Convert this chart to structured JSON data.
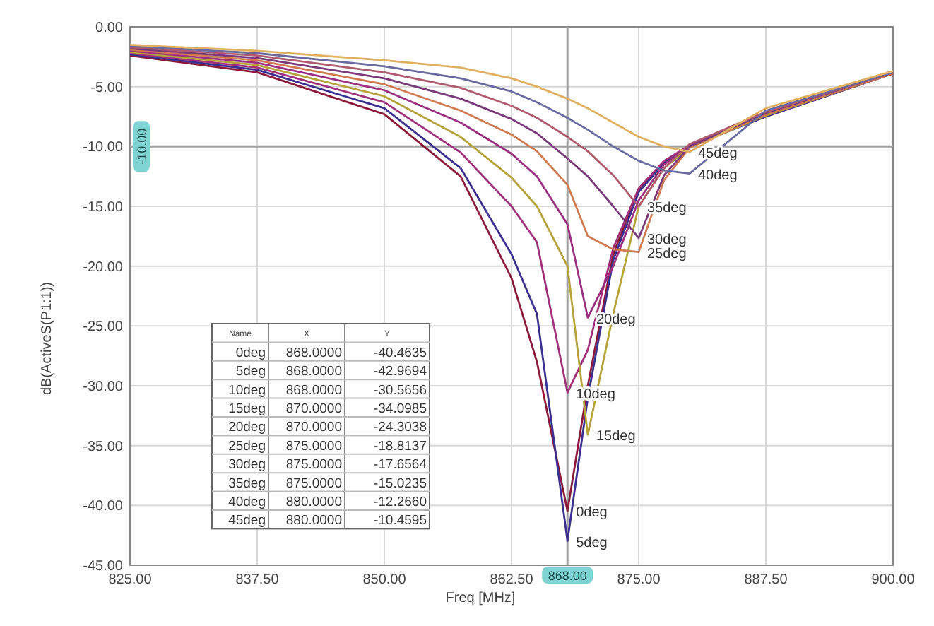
{
  "chart_data": {
    "type": "line",
    "xlabel": "Freq [MHz]",
    "ylabel": "dB(ActiveS(P1:1))",
    "x": [
      825,
      837.5,
      850,
      857.5,
      862.5,
      865,
      868,
      870,
      872.5,
      875,
      877.5,
      880,
      887.5,
      900
    ],
    "xlim": [
      825,
      900
    ],
    "xticks": [
      {
        "value": 825,
        "label": "825.00"
      },
      {
        "value": 837.5,
        "label": "837.50"
      },
      {
        "value": 850,
        "label": "850.00"
      },
      {
        "value": 862.5,
        "label": "862.50"
      },
      {
        "value": 875,
        "label": "875.00"
      },
      {
        "value": 887.5,
        "label": "887.50"
      },
      {
        "value": 900,
        "label": "900.00"
      }
    ],
    "ylim": [
      -45,
      0
    ],
    "yticks": [
      {
        "value": -45,
        "label": "-45.00"
      },
      {
        "value": -40,
        "label": "-40.00"
      },
      {
        "value": -35,
        "label": "-35.00"
      },
      {
        "value": -30,
        "label": "-30.00"
      },
      {
        "value": -25,
        "label": "-25.00"
      },
      {
        "value": -20,
        "label": "-20.00"
      },
      {
        "value": -15,
        "label": "-15.00"
      },
      {
        "value": -10,
        "label": "-10.00"
      },
      {
        "value": -5,
        "label": "-5.00"
      },
      {
        "value": 0,
        "label": "0.00"
      }
    ],
    "grid": true,
    "line_style": "solid",
    "series": [
      {
        "color": "#8b1a3a",
        "values": [
          -2.4,
          -3.8,
          -7.3,
          -12.5,
          -21,
          -28,
          -40.4635,
          -30,
          -19,
          -13.6,
          -11.3,
          -9.9,
          -7.5,
          -3.9
        ]
      },
      {
        "color": "#3b2f8f",
        "values": [
          -2.3,
          -3.6,
          -6.8,
          -11.8,
          -19,
          -24,
          -42.9694,
          -31,
          -19.5,
          -13.8,
          -11.4,
          -10,
          -7.5,
          -3.9
        ]
      },
      {
        "color": "#a0307a",
        "values": [
          -2.2,
          -3.4,
          -6.3,
          -10.5,
          -15,
          -18,
          -30.5656,
          -27,
          -18.5,
          -13.5,
          -11.2,
          -9.9,
          -7.4,
          -3.9
        ]
      },
      {
        "color": "#b5a23a",
        "values": [
          -2.1,
          -3.2,
          -5.8,
          -9.2,
          -12.6,
          -15,
          -20,
          -34.0985,
          -24,
          -15,
          -11.8,
          -10.1,
          -7.4,
          -3.9
        ]
      },
      {
        "color": "#9b3080",
        "values": [
          -2,
          -3,
          -5.3,
          -8,
          -10.6,
          -12.5,
          -16.5,
          -24.3038,
          -20,
          -14.5,
          -11.5,
          -10,
          -7.3,
          -3.9
        ]
      },
      {
        "color": "#d07a50",
        "values": [
          -1.9,
          -2.8,
          -4.8,
          -7,
          -9,
          -10.4,
          -13.2,
          -17.5,
          -18.6,
          -18.8137,
          -12.8,
          -10.1,
          -7.3,
          -3.9
        ]
      },
      {
        "color": "#7a3a7a",
        "values": [
          -1.8,
          -2.6,
          -4.3,
          -6,
          -7.7,
          -8.9,
          -11,
          -12.5,
          -15,
          -17.6564,
          -12.4,
          -10,
          -7.2,
          -3.8
        ]
      },
      {
        "color": "#b05a70",
        "values": [
          -1.7,
          -2.4,
          -3.8,
          -5.1,
          -6.6,
          -7.6,
          -9.2,
          -10.4,
          -12.4,
          -15.0235,
          -11.8,
          -9.8,
          -7.1,
          -3.8
        ]
      },
      {
        "color": "#6a6aa0",
        "values": [
          -1.6,
          -2.2,
          -3.3,
          -4.3,
          -5.4,
          -6.3,
          -7.6,
          -8.6,
          -10,
          -11.2,
          -12,
          -12.266,
          -7,
          -3.8
        ]
      },
      {
        "color": "#e0b060",
        "values": [
          -1.5,
          -2,
          -2.8,
          -3.4,
          -4.3,
          -5,
          -6,
          -6.8,
          -8,
          -9.2,
          -10,
          -10.4595,
          -6.8,
          -3.7
        ]
      }
    ],
    "ref_lines": [
      {
        "axis": "x",
        "value": 868,
        "label": "868.00",
        "color": "#a0a0a0"
      },
      {
        "axis": "y",
        "value": -10,
        "label": "-10.00",
        "color": "#a0a0a0"
      }
    ],
    "annotations": [
      "Name",
      "X",
      "Y",
      "0deg",
      "868.0000",
      "-40.4635",
      "5deg",
      "868.0000",
      "-42.9694",
      "10deg",
      "868.0000",
      "-30.5656",
      "15deg",
      "870.0000",
      "-34.0985",
      "20deg",
      "870.0000",
      "-24.3038",
      "25deg",
      "875.0000",
      "-18.8137",
      "30deg",
      "875.0000",
      "-17.6564",
      "35deg",
      "875.0000",
      "-15.0235",
      "40deg",
      "880.0000",
      "-12.2660",
      "45deg",
      "880.0000",
      "-10.4595",
      {
        "text": "0deg",
        "x": 868,
        "y": -40.4635
      },
      {
        "text": "5deg",
        "x": 868,
        "y": -42.9694
      },
      {
        "text": "10deg",
        "x": 868,
        "y": -30.5656
      },
      {
        "text": "15deg",
        "x": 870,
        "y": -34.0985
      },
      {
        "text": "20deg",
        "x": 870,
        "y": -24.3038
      },
      {
        "text": "25deg",
        "x": 875,
        "y": -18.8137
      },
      {
        "text": "30deg",
        "x": 875,
        "y": -17.6564
      },
      {
        "text": "35deg",
        "x": 875,
        "y": -15.0235
      },
      {
        "text": "40deg",
        "x": 880,
        "y": -12.266
      },
      {
        "text": "45deg",
        "x": 880,
        "y": -10.4595
      }
    ]
  }
}
